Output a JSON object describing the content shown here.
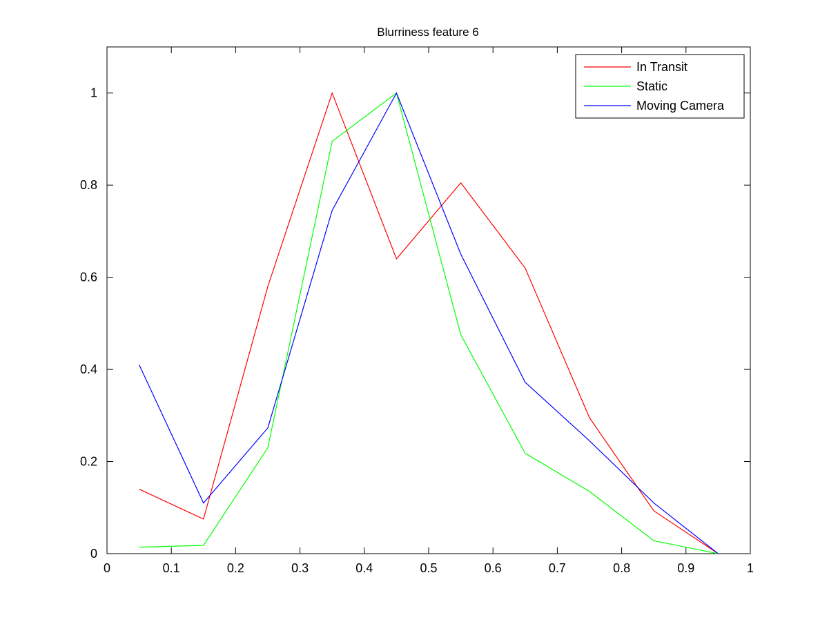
{
  "chart_data": {
    "type": "line",
    "title": "Blurriness feature 6",
    "xlabel": "",
    "ylabel": "",
    "xlim": [
      0,
      1
    ],
    "ylim": [
      0,
      1.1
    ],
    "xticks": [
      0,
      0.1,
      0.2,
      0.3,
      0.4,
      0.5,
      0.6,
      0.7,
      0.8,
      0.9,
      1
    ],
    "xtick_labels": [
      "0",
      "0.1",
      "0.2",
      "0.3",
      "0.4",
      "0.5",
      "0.6",
      "0.7",
      "0.8",
      "0.9",
      "1"
    ],
    "yticks": [
      0,
      0.2,
      0.4,
      0.6,
      0.8,
      1
    ],
    "ytick_labels": [
      "0",
      "0.2",
      "0.4",
      "0.6",
      "0.8",
      "1"
    ],
    "grid": false,
    "legend_position": "top-right",
    "x": [
      0.05,
      0.15,
      0.25,
      0.35,
      0.45,
      0.55,
      0.65,
      0.75,
      0.85,
      0.95
    ],
    "series": [
      {
        "name": "In Transit",
        "color": "#ff0000",
        "values": [
          0.14,
          0.075,
          0.58,
          1.0,
          0.64,
          0.805,
          0.62,
          0.295,
          0.093,
          0.0
        ]
      },
      {
        "name": "Static",
        "color": "#00ff00",
        "values": [
          0.014,
          0.018,
          0.23,
          0.895,
          1.0,
          0.475,
          0.218,
          0.135,
          0.028,
          0.0
        ]
      },
      {
        "name": "Moving Camera",
        "color": "#0000ff",
        "values": [
          0.41,
          0.11,
          0.273,
          0.745,
          1.0,
          0.65,
          0.372,
          0.245,
          0.11,
          0.0
        ]
      }
    ]
  }
}
